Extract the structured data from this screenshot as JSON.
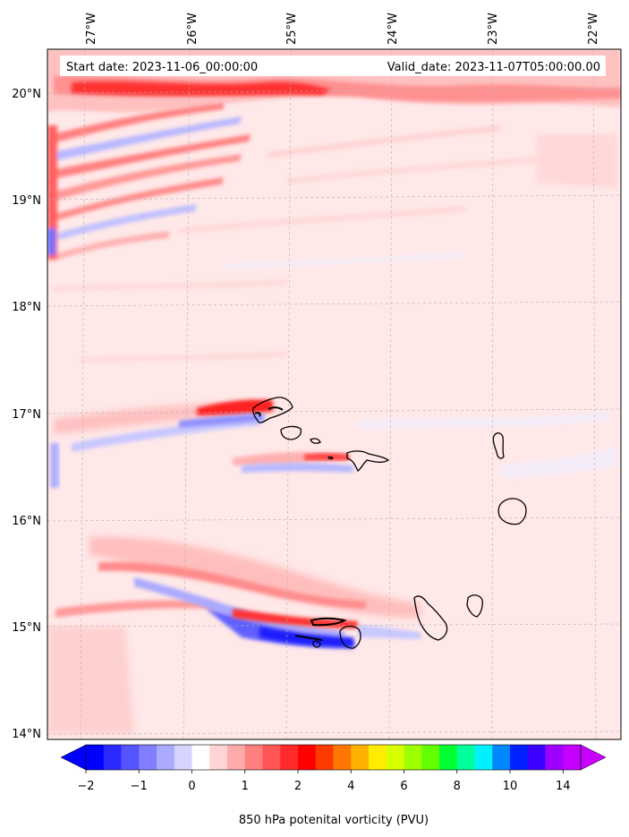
{
  "map": {
    "start_label": "Start date: 2023-11-06_00:00:00",
    "valid_label": "Valid_date: 2023-11-07T05:00:00.00",
    "lon_ticks": [
      "27°W",
      "26°W",
      "25°W",
      "24°W",
      "23°W",
      "22°W"
    ],
    "lat_ticks": [
      "20°N",
      "19°N",
      "18°N",
      "17°N",
      "16°N",
      "15°N",
      "14°N"
    ],
    "islands": [
      "santo-antao",
      "sao-vicente",
      "santa-luzia",
      "sao-nicolau",
      "sal",
      "boa-vista",
      "santiago",
      "maio",
      "fogo"
    ]
  },
  "colorbar": {
    "label": "850 hPa potenital vorticity (PVU)",
    "tick_labels": [
      "−2",
      "−1",
      "0",
      "1",
      "2",
      "4",
      "6",
      "8",
      "10",
      "14"
    ],
    "tick_values": [
      -2,
      -1,
      0,
      1,
      2,
      4,
      6,
      8,
      10,
      14
    ],
    "colors": [
      "#0000ff",
      "#2a2aff",
      "#5555ff",
      "#7f7fff",
      "#aaaaff",
      "#d4d4ff",
      "#ffffff",
      "#ffd4d4",
      "#ffaaaa",
      "#ff7f7f",
      "#ff5555",
      "#ff2a2a",
      "#ff0000",
      "#ff3a00",
      "#ff7600",
      "#ffb100",
      "#ffec00",
      "#d8ff00",
      "#9dff00",
      "#62ff00",
      "#00ff30",
      "#00ff9a",
      "#00f0ff",
      "#0088ff",
      "#0020ff",
      "#3a00ff",
      "#9d00ff",
      "#c400ff"
    ],
    "under_color": "#0000ff",
    "over_color": "#c800ff"
  },
  "palette": {
    "background": "#ffe8e8",
    "light_red": "#ffc6c6",
    "mid_red": "#ff8d8d",
    "strong_red": "#ff2020",
    "light_blue": "#d8d8ff",
    "mid_blue": "#8a8aff",
    "strong_blue": "#2828ff"
  }
}
